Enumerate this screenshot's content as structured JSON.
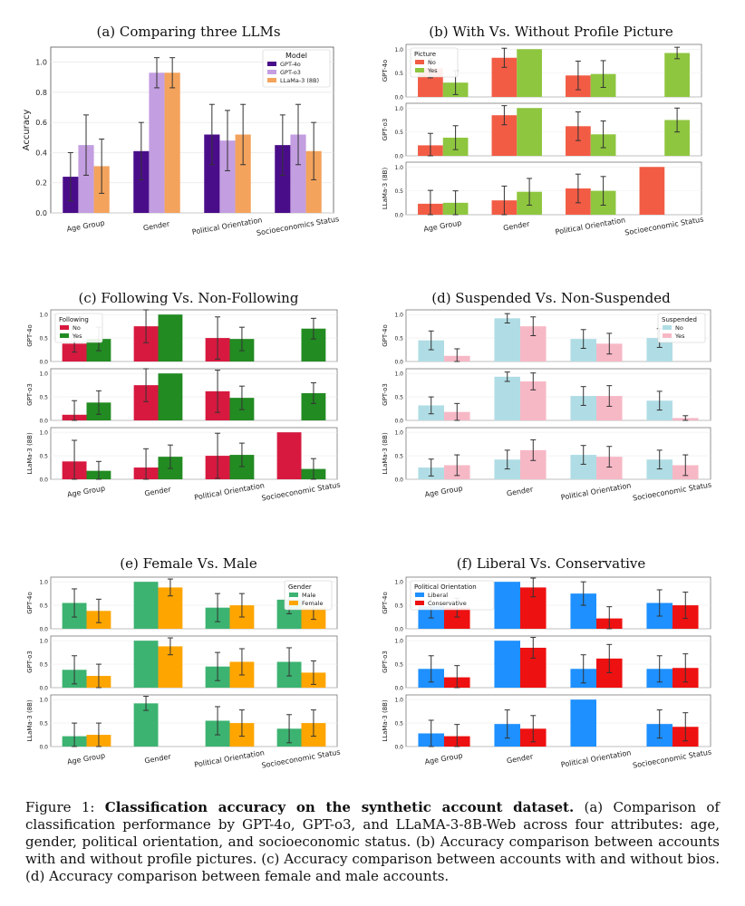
{
  "figure": {
    "caption_label": "Figure 1:",
    "caption_bold": "Classification accuracy on the synthetic account dataset.",
    "caption_text": "(a) Comparison of classification performance by GPT-4o, GPT-o3, and LLaMA-3-8B-Web across four attributes: age, gender, political orientation, and socioeconomic status. (b) Accuracy comparison between accounts with and without profile pictures. (c) Accuracy comparison between accounts with and without bios. (d) Accuracy comparison between female and male accounts."
  },
  "chart_data": [
    {
      "id": "a",
      "type": "bar",
      "title": "(a) Comparing three LLMs",
      "categories": [
        "Age Group",
        "Gender",
        "Political Orientation",
        "Socioeconomics Status"
      ],
      "ylabel": "Accuracy",
      "ylim": [
        0,
        1.1
      ],
      "yticks": [
        "0.0",
        "0.2",
        "0.4",
        "0.6",
        "0.8",
        "1.0"
      ],
      "legend_title": "Model",
      "legend_position": "top-right",
      "series": [
        {
          "name": "GPT-4o",
          "color": "#4a0d8a",
          "values": [
            0.24,
            0.41,
            0.52,
            0.45
          ],
          "err": [
            0.16,
            0.19,
            0.2,
            0.2
          ]
        },
        {
          "name": "GPT-o3",
          "color": "#c39ee0",
          "values": [
            0.45,
            0.93,
            0.48,
            0.52
          ],
          "err": [
            0.2,
            0.1,
            0.2,
            0.2
          ]
        },
        {
          "name": "LLaMa-3 (8B)",
          "color": "#f4a35c",
          "values": [
            0.31,
            0.93,
            0.52,
            0.41
          ],
          "err": [
            0.18,
            0.1,
            0.2,
            0.19
          ]
        }
      ]
    },
    {
      "id": "b",
      "type": "bar",
      "title": "(b) With Vs. Without Profile Picture",
      "categories": [
        "Age Group",
        "Gender",
        "Political Orientation",
        "Socioeconomic Status"
      ],
      "legend_title": "Picture",
      "legend_position": "top-left",
      "legend_row": "GPT-4o",
      "rows": [
        "GPT-4o",
        "GPT-o3",
        "LLaMa-3 (8B)"
      ],
      "series": [
        {
          "name": "No",
          "color": "#f25c45",
          "values": [
            [
              0.6,
              0.82,
              0.45,
              null
            ],
            [
              0.22,
              0.85,
              0.62,
              null
            ],
            [
              0.23,
              0.3,
              0.55,
              1.0
            ]
          ],
          "err": [
            [
              0.2,
              0.2,
              0.3,
              0
            ],
            [
              0.25,
              0.2,
              0.3,
              0
            ],
            [
              0.28,
              0.3,
              0.3,
              0
            ]
          ]
        },
        {
          "name": "Yes",
          "color": "#8ec63f",
          "values": [
            [
              0.3,
              1.0,
              0.48,
              0.92
            ],
            [
              0.38,
              1.0,
              0.45,
              0.75
            ],
            [
              0.25,
              0.48,
              0.5,
              null
            ]
          ],
          "err": [
            [
              0.25,
              0,
              0.28,
              0.12
            ],
            [
              0.25,
              0,
              0.28,
              0.25
            ],
            [
              0.25,
              0.28,
              0.3,
              0
            ]
          ]
        }
      ]
    },
    {
      "id": "c",
      "type": "bar",
      "title": "(c) Following Vs. Non-Following",
      "categories": [
        "Age Group",
        "Gender",
        "Political Orientation",
        "Socioeconomic Status"
      ],
      "legend_title": "Following",
      "legend_position": "top-left",
      "legend_row": "GPT-4o",
      "rows": [
        "GPT-4o",
        "GPT-o3",
        "LLaMa-3 (8B)"
      ],
      "series": [
        {
          "name": "No",
          "color": "#d7193f",
          "values": [
            [
              0.38,
              0.75,
              0.5,
              null
            ],
            [
              0.12,
              0.75,
              0.62,
              null
            ],
            [
              0.38,
              0.25,
              0.5,
              1.0
            ]
          ],
          "err": [
            [
              0.18,
              0.35,
              0.45,
              0
            ],
            [
              0.3,
              0.35,
              0.45,
              0
            ],
            [
              0.45,
              0.4,
              0.48,
              0
            ]
          ]
        },
        {
          "name": "Yes",
          "color": "#228b22",
          "values": [
            [
              0.48,
              1.0,
              0.48,
              0.7
            ],
            [
              0.38,
              1.0,
              0.48,
              0.58
            ],
            [
              0.18,
              0.48,
              0.52,
              0.22
            ]
          ],
          "err": [
            [
              0.25,
              0,
              0.25,
              0.22
            ],
            [
              0.25,
              0,
              0.25,
              0.22
            ],
            [
              0.2,
              0.25,
              0.25,
              0.22
            ]
          ]
        }
      ]
    },
    {
      "id": "d",
      "type": "bar",
      "title": "(d) Suspended Vs. Non-Suspended",
      "categories": [
        "Age Group",
        "Gender",
        "Political Orientation",
        "Socioeconomic Status"
      ],
      "legend_title": "Suspended",
      "legend_position": "top-right",
      "legend_row": "GPT-4o",
      "rows": [
        "GPT-4o",
        "GPT-o3",
        "LLaMa-3 (8B)"
      ],
      "series": [
        {
          "name": "No",
          "color": "#b0dde5",
          "values": [
            [
              0.45,
              0.92,
              0.48,
              0.5
            ],
            [
              0.32,
              0.93,
              0.52,
              0.42
            ],
            [
              0.25,
              0.42,
              0.52,
              0.42
            ]
          ],
          "err": [
            [
              0.2,
              0.1,
              0.2,
              0.2
            ],
            [
              0.18,
              0.1,
              0.2,
              0.2
            ],
            [
              0.18,
              0.2,
              0.2,
              0.2
            ]
          ]
        },
        {
          "name": "Yes",
          "color": "#f7b8c6",
          "values": [
            [
              0.12,
              0.75,
              0.38,
              null
            ],
            [
              0.18,
              0.83,
              0.52,
              0.05
            ],
            [
              0.3,
              0.62,
              0.48,
              0.3
            ]
          ],
          "err": [
            [
              0.15,
              0.2,
              0.22,
              0
            ],
            [
              0.18,
              0.18,
              0.22,
              0.05
            ],
            [
              0.22,
              0.22,
              0.22,
              0.22
            ]
          ]
        }
      ]
    },
    {
      "id": "e",
      "type": "bar",
      "title": "(e) Female Vs. Male",
      "categories": [
        "Age Group",
        "Gender",
        "Political Orientation",
        "Socioeconomic Status"
      ],
      "legend_title": "Gender",
      "legend_position": "top-right",
      "legend_row": "GPT-4o",
      "rows": [
        "GPT-4o",
        "GPT-o3",
        "LLaMa-3 (8B)"
      ],
      "series": [
        {
          "name": "Male",
          "color": "#3cb371",
          "values": [
            [
              0.55,
              1.0,
              0.45,
              0.62
            ],
            [
              0.38,
              1.0,
              0.45,
              0.55
            ],
            [
              0.22,
              0.92,
              0.55,
              0.38
            ]
          ],
          "err": [
            [
              0.3,
              0,
              0.3,
              0.3
            ],
            [
              0.3,
              0,
              0.3,
              0.3
            ],
            [
              0.28,
              0.15,
              0.3,
              0.3
            ]
          ]
        },
        {
          "name": "Female",
          "color": "#ffa500",
          "values": [
            [
              0.38,
              0.88,
              0.5,
              0.45
            ],
            [
              0.25,
              0.88,
              0.55,
              0.32
            ],
            [
              0.25,
              null,
              0.5,
              0.5
            ]
          ],
          "err": [
            [
              0.25,
              0.18,
              0.25,
              0.25
            ],
            [
              0.25,
              0.18,
              0.28,
              0.25
            ],
            [
              0.25,
              0,
              0.28,
              0.28
            ]
          ]
        }
      ]
    },
    {
      "id": "f",
      "type": "bar",
      "title": "(f) Liberal Vs. Conservative",
      "categories": [
        "Age Group",
        "Gender",
        "Political Orientation",
        "Socioeconomic Status"
      ],
      "legend_title": "Political Orientation",
      "legend_position": "top-left",
      "legend_row": "GPT-4o",
      "rows": [
        "GPT-4o",
        "GPT-o3",
        "LLaMa-3 (8B)"
      ],
      "series": [
        {
          "name": "Liberal",
          "color": "#1e90ff",
          "values": [
            [
              0.48,
              1.0,
              0.75,
              0.55
            ],
            [
              0.4,
              1.0,
              0.4,
              0.4
            ],
            [
              0.28,
              0.48,
              1.0,
              0.48
            ]
          ],
          "err": [
            [
              0.25,
              0,
              0.25,
              0.28
            ],
            [
              0.28,
              0,
              0.3,
              0.28
            ],
            [
              0.28,
              0.3,
              0,
              0.3
            ]
          ]
        },
        {
          "name": "Conservative",
          "color": "#ee1111",
          "values": [
            [
              0.45,
              0.88,
              0.22,
              0.5
            ],
            [
              0.22,
              0.85,
              0.62,
              0.42
            ],
            [
              0.22,
              0.38,
              null,
              0.42
            ]
          ],
          "err": [
            [
              0.2,
              0.2,
              0.25,
              0.28
            ],
            [
              0.25,
              0.22,
              0.3,
              0.3
            ],
            [
              0.25,
              0.28,
              0,
              0.3
            ]
          ]
        }
      ]
    }
  ]
}
